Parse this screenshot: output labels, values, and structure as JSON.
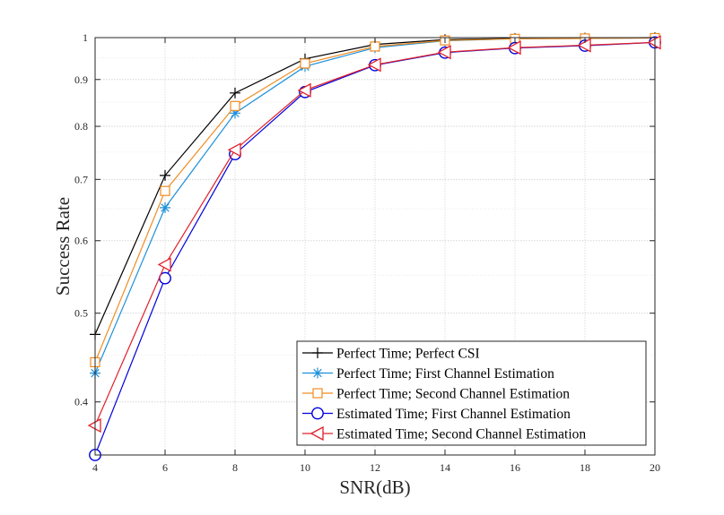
{
  "chart_data": {
    "type": "line",
    "title": "",
    "xlabel": "SNR(dB)",
    "ylabel": "Success Rate",
    "x": [
      4,
      6,
      8,
      10,
      12,
      14,
      16,
      18,
      20
    ],
    "xlim": [
      4,
      20
    ],
    "xticks": [
      "4",
      "6",
      "8",
      "10",
      "12",
      "14",
      "16",
      "18",
      "20"
    ],
    "ylim": [
      0.35,
      1
    ],
    "yscale": "log",
    "yticks": [
      {
        "value": 0.4,
        "label": "0.4"
      },
      {
        "value": 0.5,
        "label": "0.5"
      },
      {
        "value": 0.6,
        "label": "0.6"
      },
      {
        "value": 0.7,
        "label": "0.7"
      },
      {
        "value": 0.8,
        "label": "0.8"
      },
      {
        "value": 0.9,
        "label": "0.9"
      },
      {
        "value": 1.0,
        "label": "1"
      }
    ],
    "grid": true,
    "legend_position": "bottom-right",
    "series": [
      {
        "name": "Perfect Time; Perfect CSI",
        "color": "#000000",
        "marker": "plus",
        "values": [
          0.474,
          0.707,
          0.87,
          0.948,
          0.983,
          0.995,
          0.998,
          0.999,
          1.0
        ]
      },
      {
        "name": "Perfect Time; First Channel Estimation",
        "color": "#1E90D9",
        "marker": "asterisk",
        "values": [
          0.43,
          0.652,
          0.827,
          0.93,
          0.975,
          0.992,
          0.997,
          0.998,
          0.999
        ]
      },
      {
        "name": "Perfect Time; Second Channel Estimation",
        "color": "#F08C22",
        "marker": "square",
        "values": [
          0.442,
          0.68,
          0.842,
          0.937,
          0.978,
          0.993,
          0.997,
          0.998,
          0.999
        ]
      },
      {
        "name": "Estimated Time; First Channel Estimation",
        "color": "#0000DD",
        "marker": "circle",
        "values": [
          0.35,
          0.546,
          0.746,
          0.872,
          0.933,
          0.963,
          0.974,
          0.98,
          0.988
        ]
      },
      {
        "name": "Estimated Time; Second Channel Estimation",
        "color": "#E0202A",
        "marker": "triangle-left",
        "values": [
          0.377,
          0.565,
          0.754,
          0.876,
          0.934,
          0.964,
          0.975,
          0.981,
          0.988
        ]
      }
    ]
  }
}
